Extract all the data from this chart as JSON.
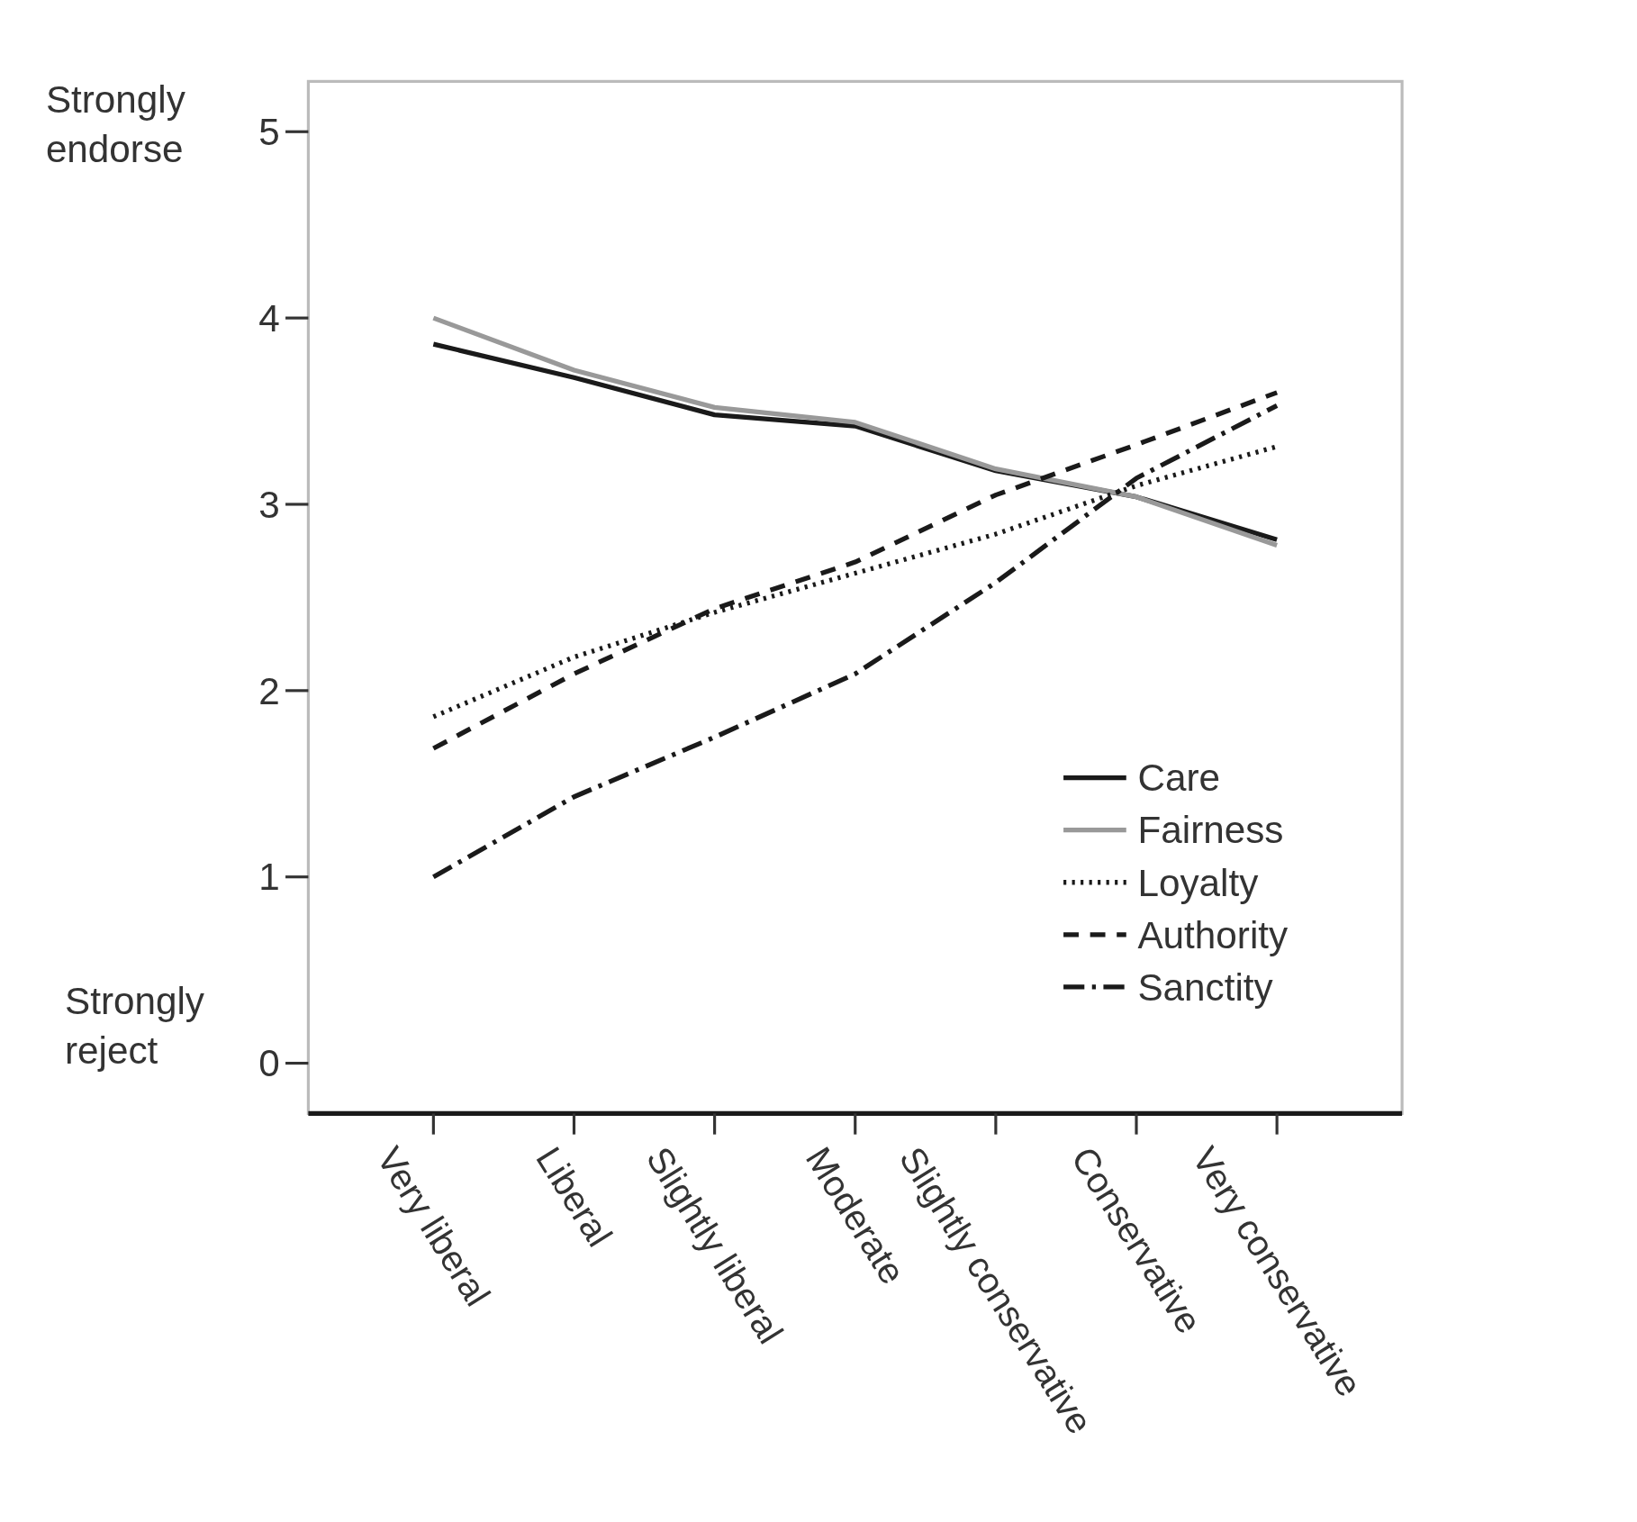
{
  "chart_data": {
    "type": "line",
    "categories": [
      "Very liberal",
      "Liberal",
      "Slightly liberal",
      "Moderate",
      "Slightly conservative",
      "Conservative",
      "Very conservative"
    ],
    "series": [
      {
        "name": "Care",
        "color": "#1a1a1a",
        "line_style": "solid",
        "values": [
          3.86,
          3.68,
          3.48,
          3.42,
          3.18,
          3.04,
          2.81
        ]
      },
      {
        "name": "Fairness",
        "color": "#999999",
        "line_style": "solid",
        "values": [
          4.0,
          3.72,
          3.52,
          3.44,
          3.19,
          3.04,
          2.78
        ]
      },
      {
        "name": "Loyalty",
        "color": "#1a1a1a",
        "line_style": "dotted",
        "values": [
          1.86,
          2.18,
          2.42,
          2.63,
          2.84,
          3.1,
          3.31
        ]
      },
      {
        "name": "Authority",
        "color": "#1a1a1a",
        "line_style": "dashed",
        "values": [
          1.69,
          2.09,
          2.44,
          2.69,
          3.05,
          3.32,
          3.6
        ]
      },
      {
        "name": "Sanctity",
        "color": "#1a1a1a",
        "line_style": "dashdot",
        "values": [
          1.0,
          1.43,
          1.75,
          2.09,
          2.58,
          3.14,
          3.53
        ]
      }
    ],
    "ylim": [
      -0.27,
      5.27
    ],
    "yticks": [
      0,
      1,
      2,
      3,
      4,
      5
    ],
    "grid": false,
    "legend": "bottom right",
    "marker": "none",
    "annotations": [
      "Strongly\nendorse",
      "Strongly\nreject"
    ]
  }
}
